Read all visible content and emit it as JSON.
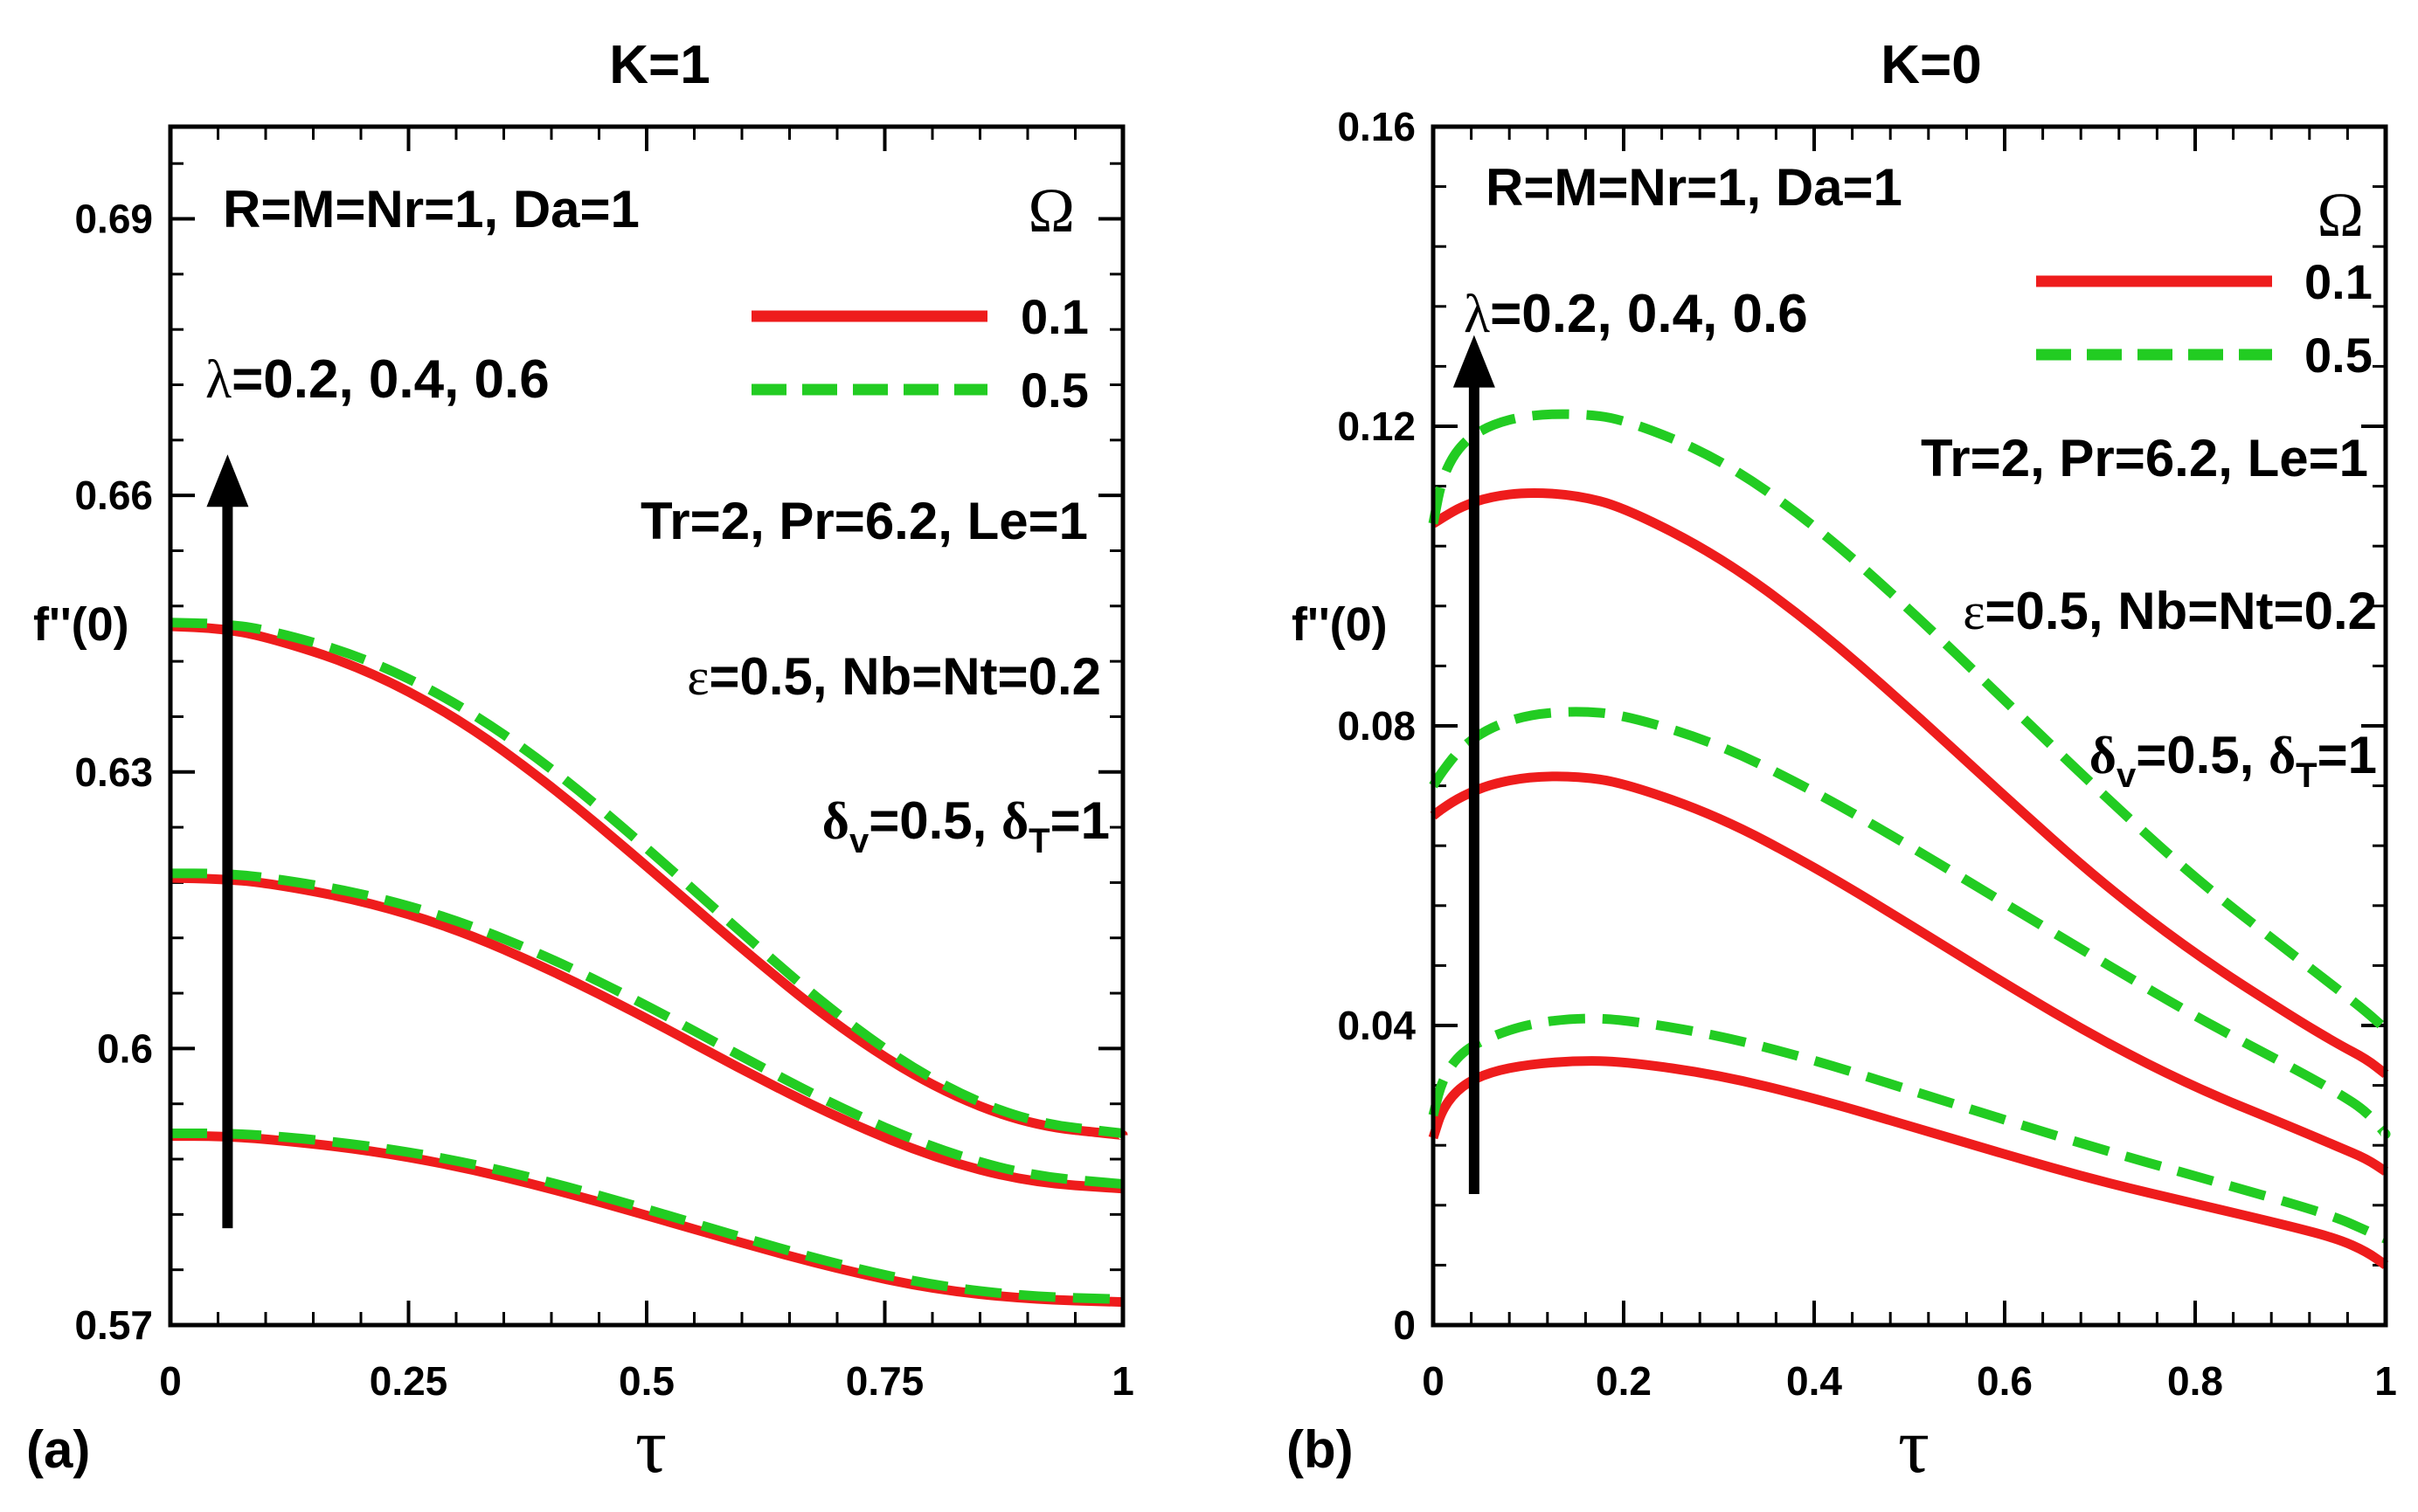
{
  "chart_data": [
    {
      "type": "line",
      "panel_label": "(a)",
      "title": "K=1",
      "xlabel": "τ",
      "ylabel": "f''(0)",
      "xlim": [
        0,
        1
      ],
      "ylim": [
        0.57,
        0.7
      ],
      "xticks": [
        0,
        0.25,
        0.5,
        0.75,
        1
      ],
      "xtick_labels": [
        "0",
        "0.25",
        "0.5",
        "0.75",
        "1"
      ],
      "yticks": [
        0.57,
        0.6,
        0.63,
        0.66,
        0.69
      ],
      "ytick_labels": [
        "0.57",
        "0.6",
        "0.63",
        "0.66",
        "0.69"
      ],
      "legend": {
        "title": "Ω",
        "placement": "top-right",
        "entries": [
          {
            "label": "0.1",
            "color": "#ee1c1c",
            "style": "solid"
          },
          {
            "label": "0.5",
            "color": "#22cc22",
            "style": "dashed"
          }
        ]
      },
      "annotations": {
        "params1": "R=M=Nr=1, Da=1",
        "lambda": {
          "symbol": "λ",
          "text": "=0.2, 0.4, 0.6"
        },
        "params2": "Tr=2, Pr=6.2, Le=1",
        "params3": {
          "symbol": "ε",
          "text": "=0.5, Nb=Nt=0.2"
        },
        "params4": {
          "d": "δ",
          "sub_v": "v",
          "mid": "=0.5, ",
          "sub_t": "T",
          "end": "=1"
        }
      },
      "arrow": {
        "x": 0.06,
        "y_from": 0.5805,
        "y_to": 0.6635
      },
      "series": [
        {
          "name": "0.1",
          "color": "#ee1c1c",
          "style": "solid",
          "lambda": 0.2,
          "x": [
            0,
            0.05,
            0.1,
            0.2,
            0.3,
            0.4,
            0.5,
            0.6,
            0.7,
            0.8,
            0.9,
            1.0
          ],
          "y": [
            0.5905,
            0.5905,
            0.5902,
            0.5891,
            0.5873,
            0.5848,
            0.5819,
            0.5789,
            0.5761,
            0.5739,
            0.5728,
            0.5725
          ]
        },
        {
          "name": "0.5",
          "color": "#22cc22",
          "style": "dashed",
          "lambda": 0.2,
          "x": [
            0,
            0.05,
            0.1,
            0.2,
            0.3,
            0.4,
            0.5,
            0.6,
            0.7,
            0.8,
            0.9,
            1.0
          ],
          "y": [
            0.5908,
            0.5908,
            0.5906,
            0.5896,
            0.5879,
            0.5855,
            0.5826,
            0.5795,
            0.5766,
            0.5743,
            0.5731,
            0.5728
          ]
        },
        {
          "name": "0.1",
          "color": "#ee1c1c",
          "style": "solid",
          "lambda": 0.4,
          "x": [
            0,
            0.05,
            0.1,
            0.2,
            0.3,
            0.4,
            0.5,
            0.6,
            0.7,
            0.8,
            0.9,
            1.0
          ],
          "y": [
            0.6185,
            0.6184,
            0.618,
            0.6161,
            0.613,
            0.6085,
            0.6033,
            0.5977,
            0.5925,
            0.5882,
            0.5855,
            0.5848
          ]
        },
        {
          "name": "0.5",
          "color": "#22cc22",
          "style": "dashed",
          "lambda": 0.4,
          "x": [
            0,
            0.05,
            0.1,
            0.2,
            0.3,
            0.4,
            0.5,
            0.6,
            0.7,
            0.8,
            0.9,
            1.0
          ],
          "y": [
            0.619,
            0.619,
            0.6186,
            0.6169,
            0.614,
            0.6098,
            0.6047,
            0.5991,
            0.5937,
            0.5892,
            0.5862,
            0.5853
          ]
        },
        {
          "name": "0.1",
          "color": "#ee1c1c",
          "style": "solid",
          "lambda": 0.6,
          "x": [
            0,
            0.05,
            0.1,
            0.2,
            0.3,
            0.4,
            0.5,
            0.6,
            0.7,
            0.8,
            0.9,
            1.0
          ],
          "y": [
            0.6458,
            0.6456,
            0.6447,
            0.6414,
            0.636,
            0.6285,
            0.6198,
            0.6108,
            0.6024,
            0.5958,
            0.5917,
            0.5906
          ]
        },
        {
          "name": "0.5",
          "color": "#22cc22",
          "style": "dashed",
          "lambda": 0.6,
          "x": [
            0,
            0.05,
            0.1,
            0.2,
            0.3,
            0.4,
            0.5,
            0.6,
            0.7,
            0.8,
            0.9,
            1.0
          ],
          "y": [
            0.6462,
            0.6461,
            0.6455,
            0.6426,
            0.6376,
            0.6305,
            0.6218,
            0.6125,
            0.6036,
            0.5964,
            0.592,
            0.5908
          ]
        }
      ]
    },
    {
      "type": "line",
      "panel_label": "(b)",
      "title": "K=0",
      "xlabel": "τ",
      "ylabel": "f''(0)",
      "xlim": [
        0,
        1
      ],
      "ylim": [
        0,
        0.16
      ],
      "xticks": [
        0,
        0.2,
        0.4,
        0.6,
        0.8,
        1
      ],
      "xtick_labels": [
        "0",
        "0.2",
        "0.4",
        "0.6",
        "0.8",
        "1"
      ],
      "yticks": [
        0,
        0.04,
        0.08,
        0.12,
        0.16
      ],
      "ytick_labels": [
        "0",
        "0.04",
        "0.08",
        "0.12",
        "0.16"
      ],
      "legend": {
        "title": "Ω",
        "placement": "top-right",
        "entries": [
          {
            "label": "0.1",
            "color": "#ee1c1c",
            "style": "solid"
          },
          {
            "label": "0.5",
            "color": "#22cc22",
            "style": "dashed"
          }
        ]
      },
      "annotations": {
        "params1": "R=M=Nr=1, Da=1",
        "lambda": {
          "symbol": "λ",
          "text": "=0.2, 0.4, 0.6"
        },
        "params2": "Tr=2, Pr=6.2, Le=1",
        "params3": {
          "symbol": "ε",
          "text": "=0.5, Nb=Nt=0.2"
        },
        "params4": {
          "d": "δ",
          "sub_v": "v",
          "mid": "=0.5, ",
          "sub_t": "T",
          "end": "=1"
        }
      },
      "arrow": {
        "x": 0.043,
        "y_from": 0.0175,
        "y_to": 0.131
      },
      "series": [
        {
          "name": "0.1",
          "color": "#ee1c1c",
          "style": "solid",
          "lambda": 0.2,
          "x": [
            0,
            0.01,
            0.03,
            0.06,
            0.1,
            0.15,
            0.2,
            0.3,
            0.4,
            0.5,
            0.6,
            0.7,
            0.8,
            0.9,
            0.95,
            0.98,
            1.0
          ],
          "y": [
            0.025,
            0.029,
            0.032,
            0.0338,
            0.0348,
            0.0353,
            0.0352,
            0.0334,
            0.0303,
            0.0266,
            0.0228,
            0.0192,
            0.0162,
            0.0132,
            0.0115,
            0.0098,
            0.008
          ]
        },
        {
          "name": "0.5",
          "color": "#22cc22",
          "style": "dashed",
          "lambda": 0.2,
          "x": [
            0,
            0.01,
            0.03,
            0.06,
            0.1,
            0.15,
            0.2,
            0.3,
            0.4,
            0.5,
            0.6,
            0.7,
            0.8,
            0.9,
            0.95,
            0.98,
            1.0
          ],
          "y": [
            0.028,
            0.033,
            0.0365,
            0.0385,
            0.0402,
            0.041,
            0.0408,
            0.0387,
            0.0354,
            0.0314,
            0.0274,
            0.0235,
            0.0199,
            0.0163,
            0.0143,
            0.0126,
            0.0115
          ]
        },
        {
          "name": "0.1",
          "color": "#ee1c1c",
          "style": "solid",
          "lambda": 0.4,
          "x": [
            0,
            0.01,
            0.03,
            0.06,
            0.1,
            0.15,
            0.2,
            0.3,
            0.4,
            0.5,
            0.6,
            0.7,
            0.8,
            0.9,
            0.95,
            0.98,
            1.0
          ],
          "y": [
            0.068,
            0.069,
            0.0706,
            0.0722,
            0.0732,
            0.0733,
            0.0724,
            0.0679,
            0.0612,
            0.0535,
            0.0456,
            0.0381,
            0.0317,
            0.0265,
            0.0238,
            0.0222,
            0.0205
          ]
        },
        {
          "name": "0.5",
          "color": "#22cc22",
          "style": "dashed",
          "lambda": 0.4,
          "x": [
            0,
            0.01,
            0.03,
            0.06,
            0.1,
            0.15,
            0.2,
            0.3,
            0.4,
            0.5,
            0.6,
            0.7,
            0.8,
            0.9,
            0.95,
            0.98,
            1.0
          ],
          "y": [
            0.072,
            0.074,
            0.0772,
            0.0798,
            0.0815,
            0.082,
            0.0815,
            0.0776,
            0.0713,
            0.064,
            0.0563,
            0.0487,
            0.0412,
            0.0345,
            0.031,
            0.0285,
            0.0255
          ]
        },
        {
          "name": "0.1",
          "color": "#ee1c1c",
          "style": "solid",
          "lambda": 0.6,
          "x": [
            0,
            0.01,
            0.03,
            0.06,
            0.1,
            0.15,
            0.2,
            0.3,
            0.4,
            0.5,
            0.6,
            0.7,
            0.8,
            0.9,
            0.95,
            0.98,
            1.0
          ],
          "y": [
            0.107,
            0.1078,
            0.1093,
            0.1106,
            0.1112,
            0.1108,
            0.1092,
            0.1027,
            0.0934,
            0.0823,
            0.0706,
            0.0592,
            0.0495,
            0.0413,
            0.0375,
            0.0355,
            0.0335
          ]
        },
        {
          "name": "0.5",
          "color": "#22cc22",
          "style": "dashed",
          "lambda": 0.6,
          "x": [
            0,
            0.01,
            0.03,
            0.06,
            0.1,
            0.15,
            0.2,
            0.3,
            0.4,
            0.5,
            0.6,
            0.7,
            0.8,
            0.9,
            0.95,
            0.98,
            1.0
          ],
          "y": [
            0.107,
            0.1135,
            0.1178,
            0.1202,
            0.1215,
            0.1217,
            0.121,
            0.1158,
            0.1069,
            0.0956,
            0.0834,
            0.0712,
            0.0596,
            0.0497,
            0.0448,
            0.0418,
            0.0395
          ]
        }
      ]
    }
  ]
}
